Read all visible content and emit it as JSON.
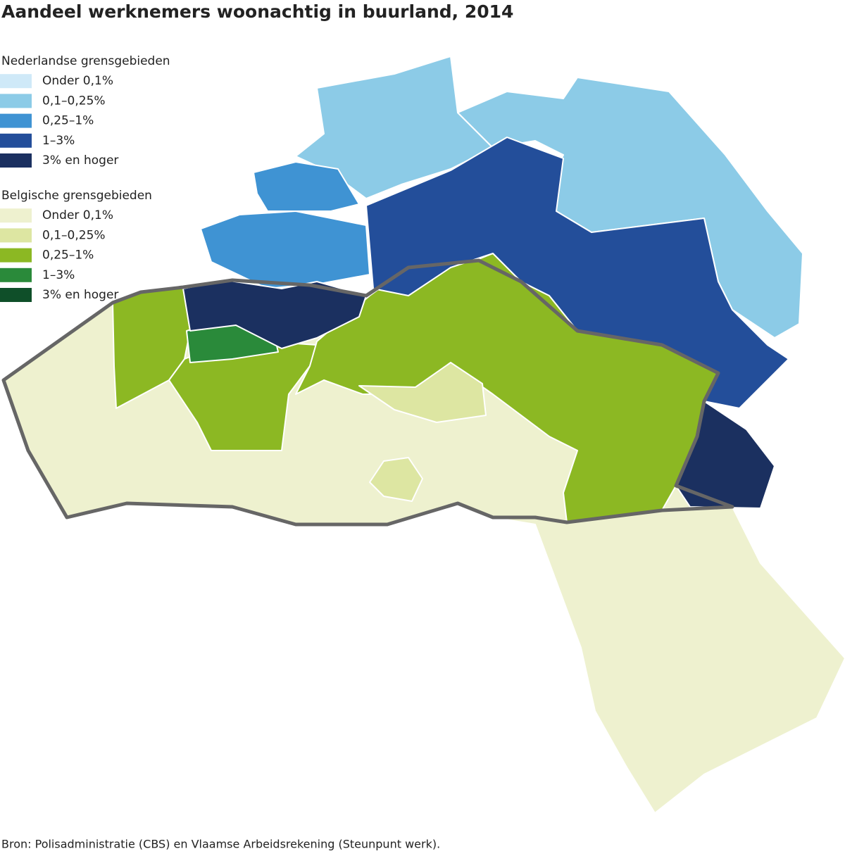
{
  "title": "Aandeel werknemers woonachtig in buurland, 2014",
  "legend": [
    {
      "title": "Nederlandse grensgebieden",
      "items": [
        {
          "label": "Onder 0,1%",
          "color": "#cfe9f8"
        },
        {
          "label": "0,1–0,25%",
          "color": "#8ccbe7"
        },
        {
          "label": "0,25–1%",
          "color": "#3f93d3"
        },
        {
          "label": "1–3%",
          "color": "#234e9a"
        },
        {
          "label": "3% en hoger",
          "color": "#1b3060"
        }
      ]
    },
    {
      "title": "Belgische grensgebieden",
      "items": [
        {
          "label": "Onder 0,1%",
          "color": "#eef1cf"
        },
        {
          "label": "0,1–0,25%",
          "color": "#dde6a2"
        },
        {
          "label": "0,25–1%",
          "color": "#8cb823"
        },
        {
          "label": "1–3%",
          "color": "#2a8a3a"
        },
        {
          "label": "3% en hoger",
          "color": "#0f4f29"
        }
      ]
    }
  ],
  "source": "Bron: Polisadministratie  (CBS) en Vlaamse Arbeidsrekening (Steunpunt werk)."
}
